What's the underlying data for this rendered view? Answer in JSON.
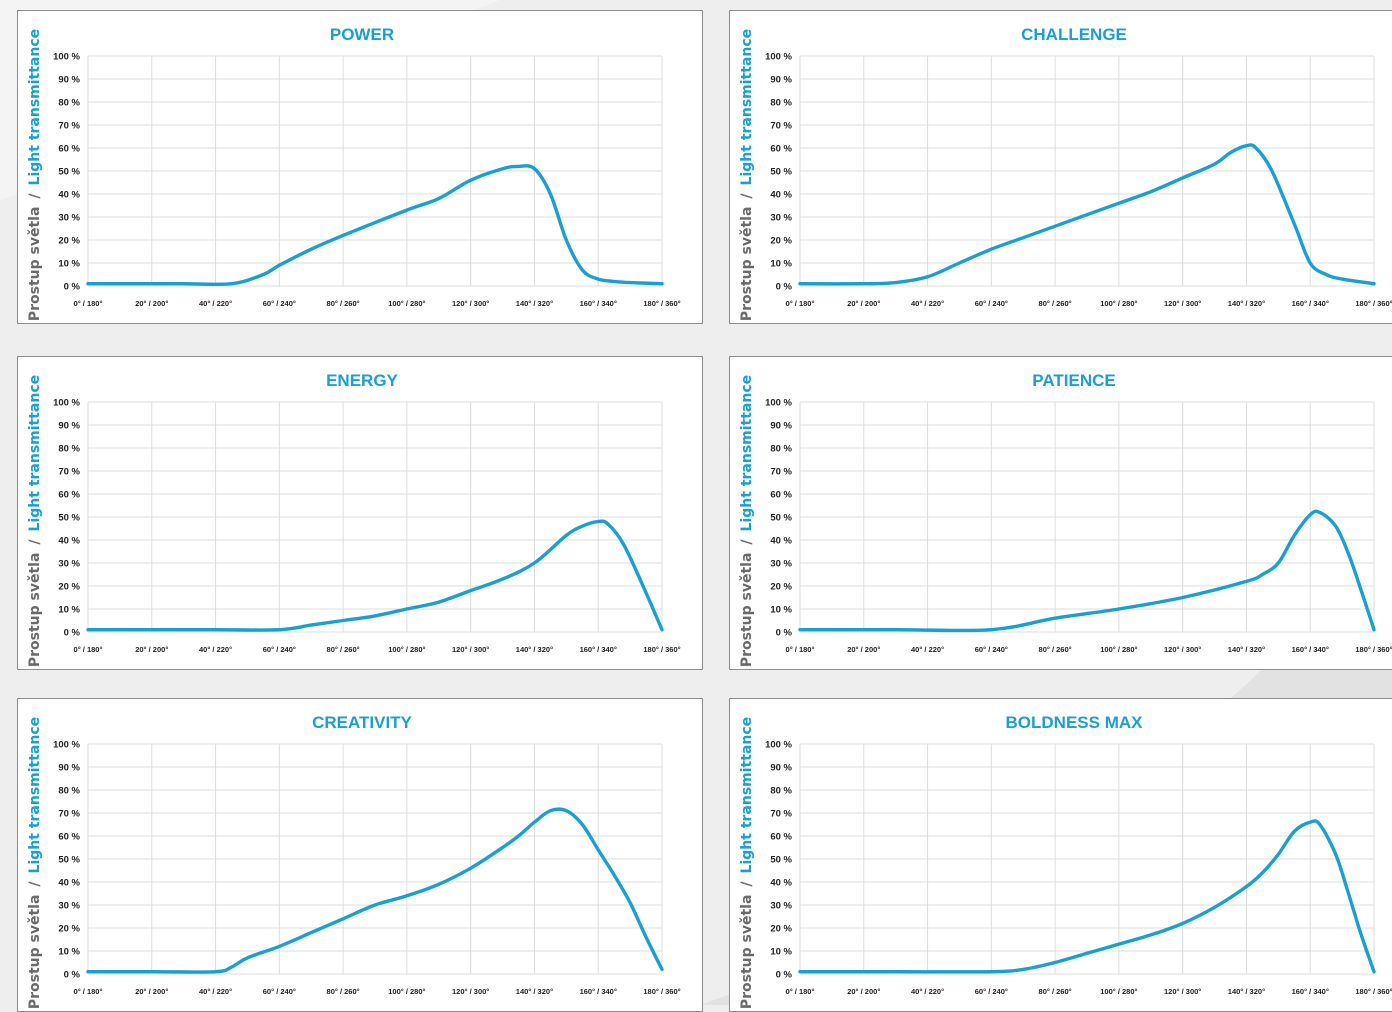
{
  "page": {
    "accent_color": "#1a9fd3",
    "ylabel_part1": "Prostup světla",
    "ylabel_sep": "/",
    "ylabel_part2": "Light transmittance"
  },
  "chart_data": [
    {
      "type": "line",
      "title": "POWER",
      "ylabel": "Prostup světla / Light transmittance",
      "ylim": [
        0,
        100
      ],
      "y_ticks": [
        "100 %",
        "90 %",
        "80 %",
        "70 %",
        "60 %",
        "50 %",
        "40 %",
        "30 %",
        "20 %",
        "10 %",
        "0 %"
      ],
      "categories": [
        "0° / 180°",
        "20° / 200°",
        "40° / 220°",
        "60° / 240°",
        "80° / 260°",
        "100° / 280°",
        "120° / 300°",
        "140° / 320°",
        "160° / 340°",
        "180° / 360°"
      ],
      "grid": true,
      "series": [
        {
          "x": [
            0,
            10,
            20,
            30,
            45,
            55,
            60,
            70,
            80,
            100,
            110,
            120,
            130,
            135,
            140,
            145,
            150,
            155,
            160,
            165,
            170,
            180
          ],
          "y": [
            1,
            1,
            1,
            1,
            1,
            5,
            9,
            16,
            22,
            33,
            38,
            46,
            51,
            52,
            51,
            40,
            20,
            7,
            3,
            2,
            1.5,
            1
          ]
        }
      ]
    },
    {
      "type": "line",
      "title": "CHALLENGE",
      "ylabel": "Prostup světla / Light transmittance",
      "ylim": [
        0,
        100
      ],
      "y_ticks": [
        "100 %",
        "90 %",
        "80 %",
        "70 %",
        "60 %",
        "50 %",
        "40 %",
        "30 %",
        "20 %",
        "10 %",
        "0 %"
      ],
      "categories": [
        "0° / 180°",
        "20° / 200°",
        "40° / 220°",
        "60° / 240°",
        "80° / 260°",
        "100° / 280°",
        "120° / 300°",
        "140° / 320°",
        "160° / 340°",
        "180° / 360°"
      ],
      "grid": true,
      "series": [
        {
          "x": [
            0,
            20,
            30,
            40,
            50,
            60,
            70,
            80,
            90,
            100,
            110,
            120,
            130,
            135,
            140,
            143,
            148,
            155,
            160,
            165,
            170,
            180
          ],
          "y": [
            1,
            1,
            1.5,
            4,
            10,
            16,
            21,
            26,
            31,
            36,
            41,
            47,
            53,
            58,
            61,
            60,
            50,
            27,
            10,
            5,
            3,
            1
          ]
        }
      ]
    },
    {
      "type": "line",
      "title": "ENERGY",
      "ylabel": "Prostup světla / Light transmittance",
      "ylim": [
        0,
        100
      ],
      "y_ticks": [
        "100 %",
        "90 %",
        "80 %",
        "70 %",
        "60 %",
        "50 %",
        "40 %",
        "30 %",
        "20 %",
        "10 %",
        "0 %"
      ],
      "categories": [
        "0° / 180°",
        "20° / 200°",
        "40° / 220°",
        "60° / 240°",
        "80° / 260°",
        "100° / 280°",
        "120° / 300°",
        "140° / 320°",
        "160° / 340°",
        "180° / 360°"
      ],
      "grid": true,
      "series": [
        {
          "x": [
            0,
            20,
            40,
            60,
            70,
            80,
            90,
            100,
            110,
            120,
            130,
            140,
            150,
            155,
            160,
            163,
            168,
            175,
            180
          ],
          "y": [
            1,
            1,
            1,
            1,
            3,
            5,
            7,
            10,
            13,
            18,
            23,
            30,
            42,
            46,
            48,
            47,
            38,
            17,
            1
          ]
        }
      ]
    },
    {
      "type": "line",
      "title": "PATIENCE",
      "ylabel": "Prostup světla / Light transmittance",
      "ylim": [
        0,
        100
      ],
      "y_ticks": [
        "100 %",
        "90 %",
        "80 %",
        "70 %",
        "60 %",
        "50 %",
        "40 %",
        "30 %",
        "20 %",
        "10 %",
        "0 %"
      ],
      "categories": [
        "0° / 180°",
        "20° / 200°",
        "40° / 220°",
        "60° / 240°",
        "80° / 260°",
        "100° / 280°",
        "120° / 300°",
        "140° / 320°",
        "160° / 340°",
        "180° / 360°"
      ],
      "grid": true,
      "series": [
        {
          "x": [
            0,
            30,
            60,
            80,
            100,
            120,
            140,
            145,
            150,
            155,
            160,
            163,
            168,
            172,
            176,
            180
          ],
          "y": [
            1,
            1,
            1,
            6,
            10,
            15,
            22,
            25,
            30,
            42,
            51,
            52,
            46,
            34,
            18,
            1
          ]
        }
      ]
    },
    {
      "type": "line",
      "title": "CREATIVITY",
      "ylabel": "Prostup světla / Light transmittance",
      "ylim": [
        0,
        100
      ],
      "y_ticks": [
        "100 %",
        "90 %",
        "80 %",
        "70 %",
        "60 %",
        "50 %",
        "40 %",
        "30 %",
        "20 %",
        "10 %",
        "0 %"
      ],
      "categories": [
        "0° / 180°",
        "20° / 200°",
        "40° / 220°",
        "60° / 240°",
        "80° / 260°",
        "100° / 280°",
        "120° / 300°",
        "140° / 320°",
        "160° / 340°",
        "180° / 360°"
      ],
      "grid": true,
      "series": [
        {
          "x": [
            0,
            20,
            40,
            45,
            50,
            60,
            70,
            80,
            90,
            100,
            110,
            120,
            130,
            135,
            140,
            145,
            150,
            155,
            160,
            165,
            170,
            175,
            180
          ],
          "y": [
            1,
            1,
            1,
            3,
            7,
            12,
            18,
            24,
            30,
            34,
            39,
            46,
            55,
            60,
            66,
            71,
            71,
            65,
            54,
            43,
            31,
            16,
            2
          ]
        }
      ]
    },
    {
      "type": "line",
      "title": "BOLDNESS MAX",
      "ylabel": "Prostup světla / Light transmittance",
      "ylim": [
        0,
        100
      ],
      "y_ticks": [
        "100 %",
        "90 %",
        "80 %",
        "70 %",
        "60 %",
        "50 %",
        "40 %",
        "30 %",
        "20 %",
        "10 %",
        "0 %"
      ],
      "categories": [
        "0° / 180°",
        "20° / 200°",
        "40° / 220°",
        "60° / 240°",
        "80° / 260°",
        "100° / 280°",
        "120° / 300°",
        "140° / 320°",
        "160° / 340°",
        "180° / 360°"
      ],
      "grid": true,
      "series": [
        {
          "x": [
            0,
            30,
            60,
            70,
            80,
            90,
            100,
            110,
            120,
            130,
            140,
            145,
            150,
            155,
            160,
            163,
            168,
            172,
            176,
            180
          ],
          "y": [
            1,
            1,
            1,
            2,
            5,
            9,
            13,
            17,
            22,
            29,
            38,
            44,
            52,
            62,
            66,
            65,
            52,
            35,
            17,
            1
          ]
        }
      ]
    }
  ]
}
